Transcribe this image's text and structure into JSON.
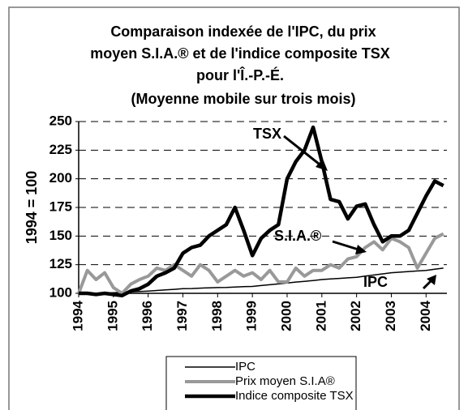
{
  "chart_data": {
    "type": "line",
    "title": [
      "Comparaison indexée de l'IPC, du prix",
      "moyen S.I.A.® et de l'indice composite TSX",
      "pour l'Î.-P.-É.",
      "(Moyenne mobile sur trois mois)"
    ],
    "y_label": "1994 = 100",
    "annotations": [
      "TSX",
      "S.I.A.®",
      "IPC"
    ],
    "x": [
      1994,
      1994.25,
      1994.5,
      1994.75,
      1995,
      1995.25,
      1995.5,
      1995.75,
      1996,
      1996.25,
      1996.5,
      1996.75,
      1997,
      1997.25,
      1997.5,
      1997.75,
      1998,
      1998.25,
      1998.5,
      1998.75,
      1999,
      1999.25,
      1999.5,
      1999.75,
      2000,
      2000.25,
      2000.5,
      2000.75,
      2001,
      2001.25,
      2001.5,
      2001.75,
      2002,
      2002.25,
      2002.5,
      2002.75,
      2003,
      2003.25,
      2003.5,
      2003.75,
      2004,
      2004.25,
      2004.5
    ],
    "series": [
      {
        "name": "IPC",
        "color": "#000000",
        "width": 1.5,
        "values": [
          100,
          100,
          100.2,
          100.3,
          100.5,
          100.8,
          101.2,
          101.6,
          102,
          102.5,
          103,
          103.5,
          104,
          104.2,
          104.5,
          104.8,
          105,
          105.2,
          105.5,
          105.8,
          106,
          106.8,
          107.5,
          108.2,
          109,
          109.8,
          110.5,
          111.2,
          112,
          112.5,
          113,
          113.5,
          114,
          115,
          116,
          117,
          118,
          118.5,
          119,
          119.5,
          120,
          121,
          122
        ]
      },
      {
        "name": "Prix moyen S.I.A®",
        "color": "#999999",
        "width": 4,
        "values": [
          100,
          120,
          112,
          118,
          105,
          100,
          108,
          112,
          115,
          122,
          120,
          125,
          120,
          115,
          125,
          120,
          110,
          115,
          120,
          115,
          118,
          112,
          120,
          110,
          110,
          122,
          115,
          120,
          120,
          125,
          122,
          130,
          132,
          140,
          145,
          138,
          148,
          145,
          140,
          122,
          135,
          148,
          152
        ]
      },
      {
        "name": "Indice composite TSX",
        "color": "#000000",
        "width": 4.5,
        "values": [
          100,
          100,
          99,
          100,
          99,
          98,
          102,
          104,
          108,
          115,
          118,
          122,
          135,
          140,
          142,
          150,
          155,
          160,
          175,
          155,
          133,
          148,
          155,
          160,
          200,
          215,
          225,
          245,
          215,
          182,
          180,
          165,
          176,
          178,
          160,
          145,
          150,
          150,
          155,
          170,
          185,
          198,
          194
        ]
      }
    ],
    "xlim": [
      1994,
      2004.6
    ],
    "xticks": [
      1994,
      1995,
      1996,
      1997,
      1998,
      1999,
      2000,
      2001,
      2002,
      2003,
      2004
    ],
    "ylim": [
      100,
      250
    ],
    "yticks": [
      100,
      125,
      150,
      175,
      200,
      225,
      250
    ],
    "grid": true
  }
}
